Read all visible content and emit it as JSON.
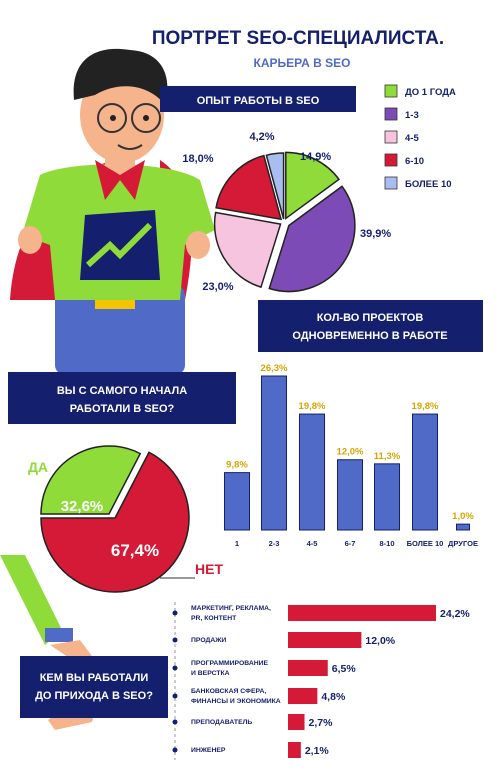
{
  "title": "ПОРТРЕТ SEO-СПЕЦИАЛИСТА.",
  "subtitle": "КАРЬЕРА В SEO",
  "colors": {
    "navy": "#141f6e",
    "blue": "#4f6ac7",
    "red": "#d41a36",
    "green": "#8fdb3a",
    "purple": "#7d4bb5",
    "pink": "#f6c4de",
    "lightblue": "#a9bdf0",
    "yellow_label": "#d8a400"
  },
  "chart_data": [
    {
      "type": "pie",
      "title": "ОПЫТ РАБОТЫ В SEO",
      "categories": [
        "ДО 1 ГОДА",
        "1-3",
        "4-5",
        "6-10",
        "БОЛЕЕ 10"
      ],
      "values": [
        14.9,
        39.9,
        23.0,
        18.0,
        4.2
      ],
      "value_labels": [
        "14,9%",
        "39,9%",
        "23,0%",
        "18,0%",
        "4,2%"
      ],
      "colors": [
        "#8fdb3a",
        "#7d4bb5",
        "#f6c4de",
        "#d41a36",
        "#a9bdf0"
      ],
      "legend": "right"
    },
    {
      "type": "bar",
      "title": "КОЛ-ВО ПРОЕКТОВ ОДНОВРЕМЕННО В РАБОТЕ",
      "categories": [
        "1",
        "2-3",
        "4-5",
        "6-7",
        "8-10",
        "БОЛЕЕ 10",
        "ДРУГОЕ"
      ],
      "values": [
        9.8,
        26.3,
        19.8,
        12.0,
        11.3,
        19.8,
        1.0
      ],
      "value_labels": [
        "9,8%",
        "26,3%",
        "19,8%",
        "12,0%",
        "11,3%",
        "19,8%",
        "1,0%"
      ],
      "ylim": [
        0,
        26.3
      ]
    },
    {
      "type": "pie",
      "title": "ВЫ С САМОГО НАЧАЛА РАБОТАЛИ В SEO?",
      "categories": [
        "ДА",
        "НЕТ"
      ],
      "values": [
        32.6,
        67.4
      ],
      "value_labels": [
        "32,6%",
        "67,4%"
      ],
      "colors": [
        "#8fdb3a",
        "#d41a36"
      ]
    },
    {
      "type": "bar",
      "orientation": "horizontal",
      "title": "КЕМ ВЫ РАБОТАЛИ ДО ПРИХОДА В SEO?",
      "categories": [
        "МАРКЕТИНГ, РЕКЛАМА, PR, КОНТЕНТ",
        "ПРОДАЖИ",
        "ПРОГРАММИРОВАНИЕ И ВЕРСТКА",
        "БАНКОВСКАЯ СФЕРА, ФИНАНСЫ И ЭКОНОМИКА",
        "ПРЕПОДАВАТЕЛЬ",
        "ИНЖЕНЕР"
      ],
      "values": [
        24.2,
        12.0,
        6.5,
        4.8,
        2.7,
        2.1
      ],
      "value_labels": [
        "24,2%",
        "12,0%",
        "6,5%",
        "4,8%",
        "2,7%",
        "2,1%"
      ],
      "xlim": [
        0,
        24.2
      ]
    }
  ]
}
